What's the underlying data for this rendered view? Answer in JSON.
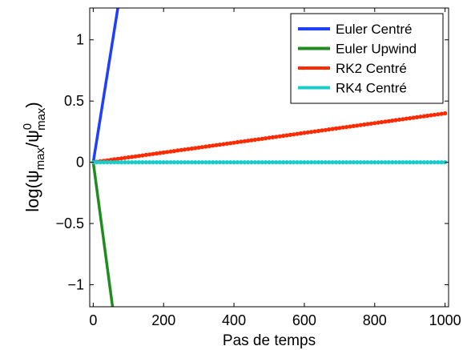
{
  "chart_data": {
    "type": "line",
    "xlabel": "Pas de temps",
    "ylabel": {
      "prefix": "log(ψ",
      "num_sub": "max",
      "mid": "/ψ",
      "den_sup": "0",
      "den_sub": "max",
      "suffix": ")"
    },
    "xlim": [
      -10,
      1010
    ],
    "ylim": [
      -1.18,
      1.26
    ],
    "xticks": [
      0,
      200,
      400,
      600,
      800,
      1000
    ],
    "xtick_labels": [
      "0",
      "200",
      "400",
      "600",
      "800",
      "1000"
    ],
    "yticks": [
      -1,
      -0.5,
      0,
      0.5,
      1
    ],
    "ytick_labels": [
      "−1",
      "−0.5",
      "0",
      "0.5",
      "1"
    ],
    "grid": false,
    "legend_position": "top-right",
    "series": [
      {
        "name": "Euler Centré",
        "color": "#1f3fff",
        "x": [
          0,
          70
        ],
        "y": [
          0,
          1.26
        ],
        "markers": false
      },
      {
        "name": "Euler Upwind",
        "color": "#1e8c1e",
        "x": [
          0,
          55
        ],
        "y": [
          0,
          -1.18
        ],
        "markers": false
      },
      {
        "name": "RK2 Centré",
        "color": "#ff2a00",
        "x": [
          0,
          1000
        ],
        "y": [
          0,
          0.4
        ],
        "markers": true
      },
      {
        "name": "RK4 Centré",
        "color": "#19cccc",
        "x": [
          0,
          1000
        ],
        "y": [
          0,
          0
        ],
        "markers": true
      }
    ]
  }
}
